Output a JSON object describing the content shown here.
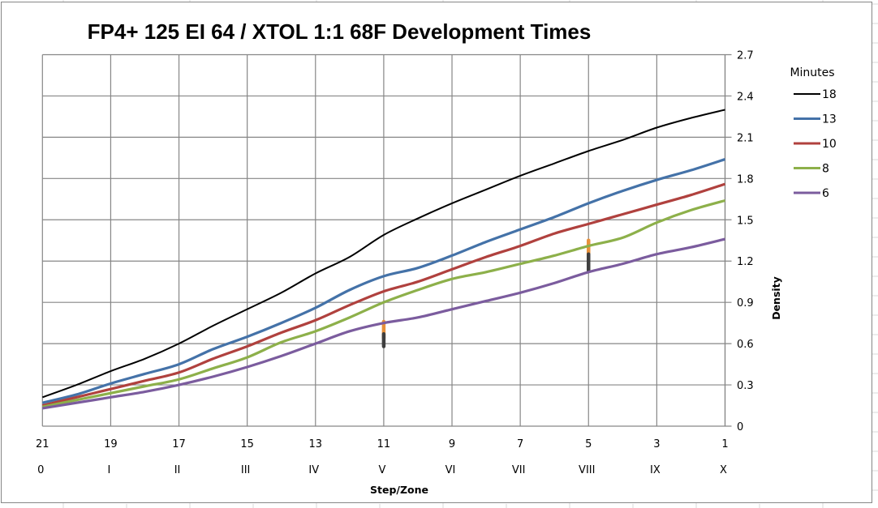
{
  "chart_data": {
    "type": "line",
    "title": "FP4+ 125 EI 64 / XTOL 1:1 68F Development Times",
    "xlabel": "Step/Zone",
    "ylabel": "Density",
    "x": [
      21,
      20,
      19,
      18,
      17,
      16,
      15,
      14,
      13,
      12,
      11,
      10,
      9,
      8,
      7,
      6,
      5,
      4,
      3,
      2,
      1
    ],
    "x_reversed": true,
    "x_tick_labels": [
      "21",
      "19",
      "17",
      "15",
      "13",
      "11",
      "9",
      "7",
      "5",
      "3",
      "1"
    ],
    "x_tick_values": [
      21,
      19,
      17,
      15,
      13,
      11,
      9,
      7,
      5,
      3,
      1
    ],
    "zone_labels": [
      "0",
      "I",
      "II",
      "III",
      "IV",
      "V",
      "VI",
      "VII",
      "VIII",
      "IX",
      "X"
    ],
    "ylim": [
      0,
      2.7
    ],
    "y_ticks": [
      0,
      0.3,
      0.6,
      0.9,
      1.2,
      1.5,
      1.8,
      2.1,
      2.4,
      2.7
    ],
    "y_tick_labels": [
      "0",
      "0.3",
      "0.6",
      "0.9",
      "1.2",
      "1.5",
      "1.8",
      "2.1",
      "2.4",
      "2.7"
    ],
    "y_axis_side": "right",
    "grid": true,
    "legend": {
      "title": "Minutes",
      "placement": "right"
    },
    "series": [
      {
        "name": "18",
        "color": "#000000",
        "values": [
          0.21,
          0.3,
          0.4,
          0.49,
          0.6,
          0.73,
          0.85,
          0.97,
          1.11,
          1.23,
          1.39,
          1.51,
          1.62,
          1.72,
          1.82,
          1.91,
          2.0,
          2.08,
          2.17,
          2.24,
          2.3
        ]
      },
      {
        "name": "13",
        "color": "#4472A8",
        "values": [
          0.17,
          0.23,
          0.31,
          0.38,
          0.45,
          0.56,
          0.65,
          0.75,
          0.86,
          0.99,
          1.09,
          1.15,
          1.24,
          1.34,
          1.43,
          1.52,
          1.62,
          1.71,
          1.79,
          1.86,
          1.94
        ]
      },
      {
        "name": "10",
        "color": "#B0413E",
        "values": [
          0.15,
          0.21,
          0.27,
          0.33,
          0.39,
          0.49,
          0.58,
          0.68,
          0.77,
          0.88,
          0.98,
          1.05,
          1.14,
          1.23,
          1.31,
          1.4,
          1.47,
          1.54,
          1.61,
          1.68,
          1.76
        ]
      },
      {
        "name": "8",
        "color": "#8DB04A",
        "values": [
          0.14,
          0.19,
          0.24,
          0.29,
          0.34,
          0.42,
          0.5,
          0.61,
          0.69,
          0.79,
          0.9,
          0.99,
          1.07,
          1.12,
          1.18,
          1.24,
          1.31,
          1.37,
          1.48,
          1.57,
          1.64
        ]
      },
      {
        "name": "6",
        "color": "#7B5C9E",
        "values": [
          0.13,
          0.17,
          0.21,
          0.25,
          0.3,
          0.36,
          0.43,
          0.51,
          0.6,
          0.69,
          0.75,
          0.79,
          0.85,
          0.91,
          0.97,
          1.04,
          1.12,
          1.18,
          1.25,
          1.3,
          1.36
        ]
      }
    ],
    "annotations": [
      {
        "type": "range-marker",
        "x": 11,
        "y_range": [
          0.64,
          0.76
        ],
        "color": "#E8913A"
      },
      {
        "type": "range-marker",
        "x": 11,
        "y_range": [
          0.58,
          0.67
        ],
        "color": "#3F3F3F"
      },
      {
        "type": "range-marker",
        "x": 5,
        "y_range": [
          1.24,
          1.35
        ],
        "color": "#E8913A"
      },
      {
        "type": "range-marker",
        "x": 5,
        "y_range": [
          1.13,
          1.25
        ],
        "color": "#3F3F3F"
      }
    ]
  }
}
